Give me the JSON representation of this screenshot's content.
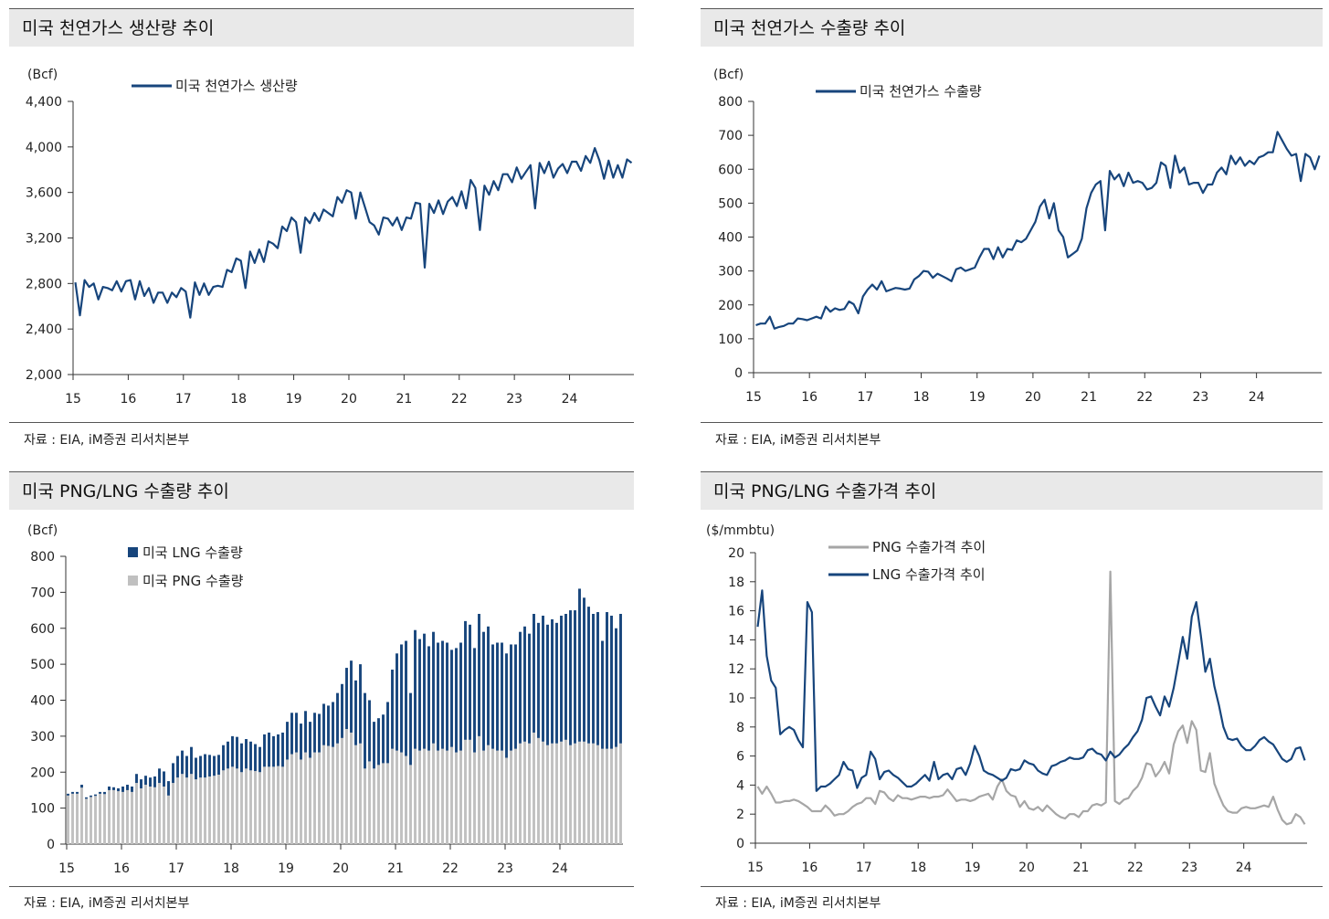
{
  "source_text": "자료 : EIA, iM증권 리서치본부",
  "panels": {
    "p1": {
      "title": "미국 천연가스 생산량 추이",
      "unit": "(Bcf)"
    },
    "p2": {
      "title": "미국 천연가스 수출량 추이",
      "unit": "(Bcf)"
    },
    "p3": {
      "title": "미국 PNG/LNG 수출량 추이",
      "unit": "(Bcf)"
    },
    "p4": {
      "title": "미국 PNG/LNG 수출가격 추이",
      "unit": "($/mmbtu)"
    }
  },
  "chart_data": [
    {
      "id": "production",
      "type": "line",
      "title": "미국 천연가스 생산량 추이",
      "ylabel": "(Bcf)",
      "ylim": [
        2000,
        4400
      ],
      "yticks": [
        "2,000",
        "2,400",
        "2,800",
        "3,200",
        "3,600",
        "4,000",
        "4,400"
      ],
      "xticks": [
        "15",
        "16",
        "17",
        "18",
        "19",
        "20",
        "21",
        "22",
        "23",
        "24"
      ],
      "x_start_year": 2015,
      "color": "#17457c",
      "legend": [
        "미국 천연가스 생산량"
      ],
      "series": [
        {
          "name": "미국 천연가스 생산량",
          "values": [
            2810,
            2520,
            2830,
            2770,
            2800,
            2660,
            2770,
            2760,
            2740,
            2820,
            2730,
            2820,
            2830,
            2660,
            2820,
            2690,
            2760,
            2630,
            2720,
            2720,
            2630,
            2720,
            2680,
            2760,
            2730,
            2500,
            2810,
            2700,
            2800,
            2700,
            2770,
            2780,
            2770,
            2920,
            2900,
            3020,
            3000,
            2760,
            3080,
            2980,
            3100,
            2990,
            3170,
            3150,
            3110,
            3300,
            3260,
            3380,
            3340,
            3070,
            3380,
            3330,
            3420,
            3350,
            3450,
            3420,
            3390,
            3560,
            3510,
            3620,
            3600,
            3370,
            3600,
            3470,
            3340,
            3310,
            3230,
            3380,
            3370,
            3310,
            3380,
            3270,
            3380,
            3370,
            3510,
            3500,
            2940,
            3500,
            3420,
            3530,
            3410,
            3520,
            3560,
            3480,
            3610,
            3460,
            3710,
            3640,
            3270,
            3660,
            3580,
            3700,
            3620,
            3760,
            3760,
            3690,
            3820,
            3720,
            3780,
            3840,
            3460,
            3860,
            3770,
            3870,
            3730,
            3810,
            3850,
            3770,
            3870,
            3870,
            3790,
            3920,
            3860,
            3990,
            3880,
            3720,
            3880,
            3730,
            3840,
            3730,
            3890,
            3860
          ]
        }
      ]
    },
    {
      "id": "exports",
      "type": "line",
      "title": "미국 천연가스 수출량 추이",
      "ylabel": "(Bcf)",
      "ylim": [
        0,
        800
      ],
      "yticks": [
        "0",
        "100",
        "200",
        "300",
        "400",
        "500",
        "600",
        "700",
        "800"
      ],
      "xticks": [
        "15",
        "16",
        "17",
        "18",
        "19",
        "20",
        "21",
        "22",
        "23",
        "24"
      ],
      "x_start_year": 2015,
      "color": "#17457c",
      "legend": [
        "미국 천연가스 수출량"
      ],
      "series": [
        {
          "name": "미국 천연가스 수출량",
          "values": [
            140,
            145,
            145,
            165,
            130,
            135,
            138,
            145,
            145,
            160,
            158,
            155,
            160,
            165,
            160,
            195,
            180,
            190,
            185,
            188,
            210,
            202,
            175,
            225,
            245,
            260,
            245,
            270,
            240,
            245,
            250,
            248,
            245,
            248,
            275,
            285,
            300,
            298,
            280,
            292,
            285,
            278,
            270,
            305,
            310,
            300,
            305,
            310,
            340,
            365,
            365,
            335,
            370,
            340,
            365,
            362,
            390,
            385,
            395,
            420,
            445,
            490,
            510,
            455,
            500,
            420,
            400,
            340,
            350,
            360,
            395,
            485,
            530,
            555,
            565,
            420,
            595,
            570,
            585,
            550,
            590,
            560,
            565,
            560,
            540,
            545,
            560,
            620,
            610,
            545,
            640,
            590,
            605,
            555,
            560,
            560,
            530,
            555,
            555,
            590,
            605,
            585,
            640,
            615,
            635,
            610,
            625,
            615,
            635,
            640,
            650,
            650,
            710,
            685,
            660,
            640,
            645,
            565,
            645,
            635,
            600,
            640
          ]
        }
      ]
    },
    {
      "id": "png_lng_volume",
      "type": "bar",
      "stacked": true,
      "title": "미국 PNG/LNG 수출량 추이",
      "ylabel": "(Bcf)",
      "ylim": [
        0,
        800
      ],
      "yticks": [
        "0",
        "100",
        "200",
        "300",
        "400",
        "500",
        "600",
        "700",
        "800"
      ],
      "xticks": [
        "15",
        "16",
        "17",
        "18",
        "19",
        "20",
        "21",
        "22",
        "23",
        "24"
      ],
      "x_start_year": 2015,
      "legend": [
        "미국 LNG 수출량",
        "미국 PNG 수출량"
      ],
      "series": [
        {
          "name": "미국 LNG 수출량",
          "color": "#17457c",
          "values": [
            5,
            5,
            5,
            8,
            4,
            4,
            4,
            5,
            6,
            10,
            8,
            8,
            15,
            15,
            15,
            25,
            25,
            25,
            25,
            30,
            40,
            42,
            40,
            55,
            60,
            65,
            60,
            75,
            60,
            60,
            65,
            60,
            55,
            55,
            70,
            75,
            85,
            88,
            80,
            82,
            80,
            75,
            70,
            90,
            95,
            85,
            88,
            95,
            105,
            115,
            110,
            100,
            115,
            100,
            110,
            107,
            115,
            112,
            125,
            140,
            150,
            170,
            200,
            180,
            220,
            210,
            170,
            130,
            130,
            135,
            170,
            220,
            270,
            300,
            320,
            200,
            330,
            310,
            320,
            290,
            310,
            300,
            300,
            300,
            270,
            290,
            300,
            330,
            320,
            290,
            340,
            330,
            330,
            290,
            300,
            300,
            290,
            295,
            290,
            310,
            320,
            305,
            330,
            320,
            350,
            335,
            345,
            335,
            350,
            350,
            375,
            370,
            425,
            400,
            380,
            360,
            370,
            300,
            380,
            370,
            330,
            360
          ]
        },
        {
          "name": "미국 PNG 수출량",
          "color": "#c0c0c0",
          "values": [
            135,
            140,
            140,
            157,
            126,
            131,
            134,
            140,
            139,
            150,
            150,
            147,
            145,
            150,
            145,
            170,
            155,
            165,
            160,
            158,
            170,
            160,
            135,
            170,
            185,
            195,
            185,
            195,
            180,
            185,
            185,
            188,
            190,
            193,
            205,
            210,
            215,
            210,
            200,
            210,
            205,
            203,
            200,
            215,
            215,
            215,
            217,
            215,
            235,
            250,
            255,
            235,
            255,
            240,
            255,
            255,
            275,
            273,
            270,
            280,
            295,
            320,
            310,
            275,
            280,
            210,
            230,
            210,
            220,
            225,
            225,
            265,
            260,
            255,
            245,
            220,
            265,
            260,
            265,
            260,
            280,
            260,
            265,
            260,
            270,
            255,
            260,
            290,
            290,
            255,
            300,
            260,
            275,
            265,
            260,
            260,
            240,
            260,
            265,
            280,
            285,
            280,
            310,
            295,
            285,
            275,
            280,
            280,
            285,
            290,
            275,
            280,
            285,
            285,
            280,
            280,
            275,
            265,
            265,
            265,
            270,
            280
          ]
        }
      ]
    },
    {
      "id": "png_lng_price",
      "type": "line",
      "title": "미국 PNG/LNG 수출가격 추이",
      "ylabel": "($/mmbtu)",
      "ylim": [
        0,
        20
      ],
      "yticks": [
        "0",
        "2",
        "4",
        "6",
        "8",
        "10",
        "12",
        "14",
        "16",
        "18",
        "20"
      ],
      "xticks": [
        "15",
        "16",
        "17",
        "18",
        "19",
        "20",
        "21",
        "22",
        "23",
        "24"
      ],
      "x_start_year": 2015,
      "legend": [
        "PNG 수출가격 추이",
        "LNG 수출가격 추이"
      ],
      "series": [
        {
          "name": "PNG 수출가격 추이",
          "color": "#a6a6a6",
          "values": [
            3.9,
            3.4,
            3.9,
            3.4,
            2.8,
            2.8,
            2.9,
            2.9,
            3.0,
            2.9,
            2.7,
            2.5,
            2.2,
            2.2,
            2.2,
            2.6,
            2.3,
            1.9,
            2.0,
            2.0,
            2.2,
            2.5,
            2.7,
            2.8,
            3.1,
            3.1,
            2.7,
            3.6,
            3.5,
            3.1,
            2.9,
            3.3,
            3.1,
            3.1,
            3.0,
            3.1,
            3.2,
            3.2,
            3.1,
            3.2,
            3.2,
            3.3,
            3.7,
            3.3,
            2.9,
            3.0,
            3.0,
            2.9,
            3.0,
            3.2,
            3.3,
            3.4,
            3.0,
            3.9,
            4.4,
            3.6,
            3.3,
            3.2,
            2.5,
            2.9,
            2.4,
            2.3,
            2.5,
            2.2,
            2.6,
            2.3,
            2.0,
            1.8,
            1.7,
            2.0,
            2.0,
            1.8,
            2.2,
            2.2,
            2.6,
            2.7,
            2.6,
            2.8,
            18.7,
            2.9,
            2.7,
            3.0,
            3.1,
            3.6,
            3.9,
            4.5,
            5.5,
            5.4,
            4.6,
            5.0,
            5.6,
            4.8,
            6.8,
            7.7,
            8.1,
            6.9,
            8.4,
            7.8,
            5.0,
            4.9,
            6.2,
            4.1,
            3.3,
            2.6,
            2.2,
            2.1,
            2.1,
            2.4,
            2.5,
            2.4,
            2.4,
            2.5,
            2.6,
            2.5,
            3.2,
            2.3,
            1.6,
            1.3,
            1.4,
            2.0,
            1.8,
            1.3
          ]
        },
        {
          "name": "LNG 수출가격 추이",
          "color": "#17457c",
          "values": [
            14.9,
            17.4,
            12.9,
            11.2,
            10.7,
            7.5,
            7.8,
            8.0,
            7.8,
            7.1,
            6.6,
            16.6,
            15.9,
            3.6,
            3.9,
            3.9,
            4.1,
            4.4,
            4.7,
            5.6,
            5.1,
            5.0,
            3.8,
            4.5,
            4.7,
            6.3,
            5.8,
            4.4,
            4.9,
            5.0,
            4.7,
            4.5,
            4.2,
            3.9,
            3.9,
            4.1,
            4.4,
            4.7,
            4.3,
            5.6,
            4.4,
            4.7,
            4.8,
            4.4,
            5.1,
            5.2,
            4.7,
            5.5,
            6.7,
            6.0,
            5.0,
            4.8,
            4.7,
            4.5,
            4.3,
            4.5,
            5.1,
            5.0,
            5.1,
            5.7,
            5.5,
            5.4,
            5.0,
            4.8,
            4.7,
            5.3,
            5.4,
            5.6,
            5.7,
            5.9,
            5.8,
            5.8,
            5.9,
            6.4,
            6.5,
            6.2,
            6.1,
            5.7,
            6.3,
            5.9,
            6.1,
            6.5,
            6.8,
            7.3,
            7.7,
            8.5,
            10.0,
            10.1,
            9.4,
            8.8,
            10.1,
            9.4,
            10.7,
            12.4,
            14.2,
            12.7,
            15.6,
            16.6,
            14.3,
            11.8,
            12.7,
            10.8,
            9.5,
            8.0,
            7.2,
            7.1,
            7.2,
            6.7,
            6.4,
            6.4,
            6.7,
            7.1,
            7.3,
            7.0,
            6.8,
            6.3,
            5.8,
            5.6,
            5.8,
            6.5,
            6.6,
            5.7
          ]
        }
      ]
    }
  ]
}
